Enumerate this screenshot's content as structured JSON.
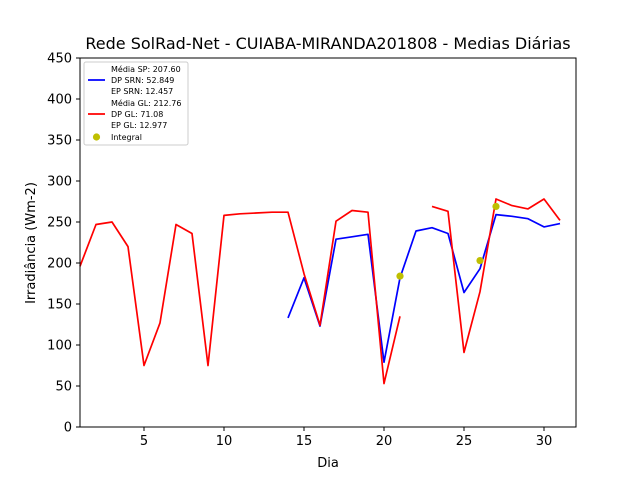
{
  "chart_data": {
    "type": "line",
    "title": "Rede SolRad-Net - CUIABA-MIRANDA201808 - Medias Diárias",
    "xlabel": "Dia",
    "ylabel": "Irradiância (Wm-2)",
    "xlim": [
      1,
      32
    ],
    "ylim": [
      0,
      450
    ],
    "xticks": [
      5,
      10,
      15,
      20,
      25,
      30
    ],
    "yticks": [
      0,
      50,
      100,
      150,
      200,
      250,
      300,
      350,
      400,
      450
    ],
    "grid": false,
    "legend_position": "top-left",
    "colors": {
      "srn": "#0000ff",
      "gl": "#ff0000",
      "integral": "#bfbf00"
    },
    "legend": [
      {
        "lines": [
          "Média SP: 207.60",
          "DP SRN: 52.849",
          "EP SRN: 12.457"
        ],
        "color": "#0000ff",
        "marker": "line"
      },
      {
        "lines": [
          "Média GL: 212.76",
          "DP GL: 71.08",
          "EP GL: 12.977"
        ],
        "color": "#ff0000",
        "marker": "line"
      },
      {
        "lines": [
          "Integral"
        ],
        "color": "#bfbf00",
        "marker": "dot"
      }
    ],
    "series": [
      {
        "key": "srn",
        "segments": [
          [
            [
              14,
              133
            ],
            [
              15,
              182
            ],
            [
              16,
              123
            ],
            [
              17,
              229
            ],
            [
              18,
              232
            ],
            [
              19,
              235
            ],
            [
              20,
              79
            ],
            [
              21,
              182
            ],
            [
              22,
              239
            ],
            [
              23,
              243
            ],
            [
              24,
              236
            ],
            [
              25,
              164
            ],
            [
              26,
              193
            ],
            [
              27,
              259
            ],
            [
              28,
              257
            ],
            [
              29,
              254
            ],
            [
              30,
              244
            ],
            [
              31,
              248
            ]
          ]
        ]
      },
      {
        "key": "gl",
        "segments": [
          [
            [
              1,
              196
            ],
            [
              2,
              247
            ],
            [
              3,
              250
            ],
            [
              4,
              220
            ],
            [
              5,
              75
            ],
            [
              6,
              127
            ],
            [
              7,
              247
            ],
            [
              8,
              236
            ],
            [
              9,
              75
            ],
            [
              10,
              258
            ],
            [
              11,
              260
            ],
            [
              12,
              261
            ],
            [
              13,
              262
            ],
            [
              14,
              262
            ],
            [
              15,
              187
            ],
            [
              16,
              124
            ],
            [
              17,
              251
            ],
            [
              18,
              264
            ],
            [
              19,
              262
            ],
            [
              20,
              53
            ],
            [
              21,
              135
            ]
          ],
          [
            [
              23,
              269
            ],
            [
              24,
              263
            ],
            [
              25,
              91
            ],
            [
              26,
              165
            ],
            [
              27,
              278
            ],
            [
              28,
              270
            ],
            [
              29,
              266
            ],
            [
              30,
              278
            ],
            [
              31,
              252
            ]
          ]
        ]
      }
    ],
    "integral": [
      [
        21,
        184
      ],
      [
        26,
        203
      ],
      [
        27,
        269
      ]
    ]
  }
}
